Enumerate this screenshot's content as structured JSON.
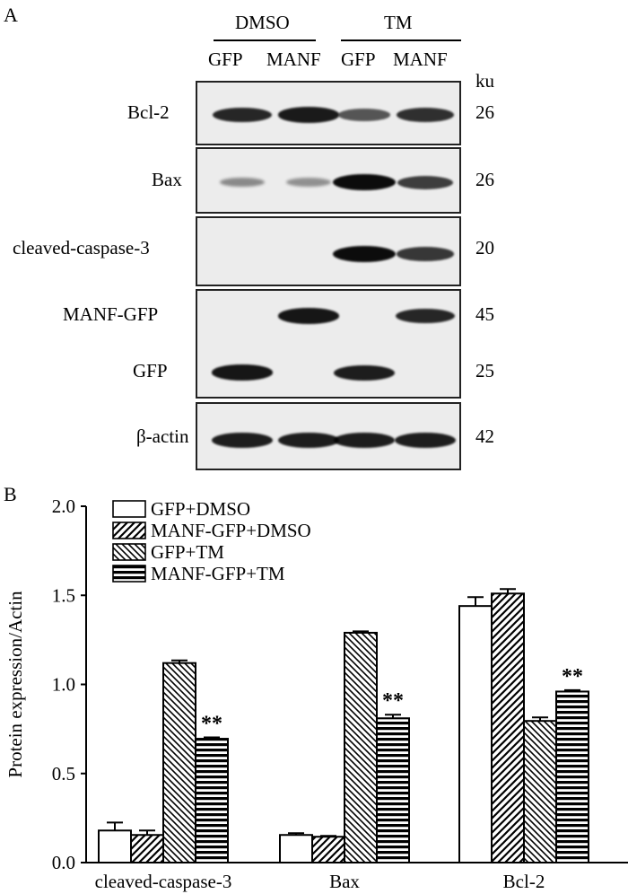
{
  "panel_a": {
    "letter": "A",
    "groups": [
      {
        "label": "DMSO",
        "lanes": [
          "GFP",
          "MANF"
        ]
      },
      {
        "label": "TM",
        "lanes": [
          "GFP",
          "MANF"
        ]
      }
    ],
    "unit": "ku",
    "blots": [
      {
        "rows": [
          {
            "label": "Bcl-2",
            "ku": "26",
            "intensity": [
              0.85,
              0.92,
              0.55,
              0.78
            ]
          }
        ]
      },
      {
        "rows": [
          {
            "label": "Bax",
            "ku": "26",
            "intensity": [
              0.25,
              0.2,
              1.0,
              0.7
            ]
          }
        ]
      },
      {
        "rows": [
          {
            "label": "cleaved-caspase-3",
            "ku": "20",
            "intensity": [
              0,
              0,
              1.0,
              0.75
            ]
          }
        ]
      },
      {
        "rows": [
          {
            "label": "MANF-GFP",
            "ku": "45",
            "intensity": [
              0,
              0.95,
              0,
              0.85
            ]
          },
          {
            "label": "GFP",
            "ku": "25",
            "intensity": [
              0.95,
              0,
              0.9,
              0
            ]
          }
        ]
      },
      {
        "rows": [
          {
            "label": "β-actin",
            "ku": "42",
            "intensity": [
              0.9,
              0.9,
              0.9,
              0.9
            ]
          }
        ]
      }
    ]
  },
  "panel_b": {
    "letter": "B"
  },
  "chart_data": {
    "type": "bar",
    "ylabel": "Protein expression/Actin",
    "xlabel": "",
    "ylim": [
      0,
      2.0
    ],
    "yticks": [
      "0.0",
      "0.5",
      "1.0",
      "1.5",
      "2.0"
    ],
    "ytick_values": [
      0,
      0.5,
      1.0,
      1.5,
      2.0
    ],
    "categories": [
      "cleaved-caspase-3",
      "Bax",
      "Bcl-2"
    ],
    "series": [
      {
        "name": "GFP+DMSO",
        "pattern": "open",
        "values": [
          0.18,
          0.155,
          1.44
        ],
        "errors": [
          0.045,
          0.01,
          0.05
        ]
      },
      {
        "name": "MANF-GFP+DMSO",
        "pattern": "diag-forward",
        "values": [
          0.155,
          0.145,
          1.51
        ],
        "errors": [
          0.025,
          0.005,
          0.025
        ]
      },
      {
        "name": "GFP+TM",
        "pattern": "diag-back",
        "values": [
          1.12,
          1.29,
          0.795
        ],
        "errors": [
          0.015,
          0.008,
          0.02
        ]
      },
      {
        "name": "MANF-GFP+TM",
        "pattern": "horizontal",
        "values": [
          0.695,
          0.81,
          0.96
        ],
        "errors": [
          0.008,
          0.02,
          0.008
        ]
      }
    ],
    "annotations": [
      {
        "category": "cleaved-caspase-3",
        "series": "MANF-GFP+TM",
        "text": "**"
      },
      {
        "category": "Bax",
        "series": "MANF-GFP+TM",
        "text": "**"
      },
      {
        "category": "Bcl-2",
        "series": "MANF-GFP+TM",
        "text": "**"
      }
    ],
    "legend_position": "top-left",
    "grid": false
  }
}
